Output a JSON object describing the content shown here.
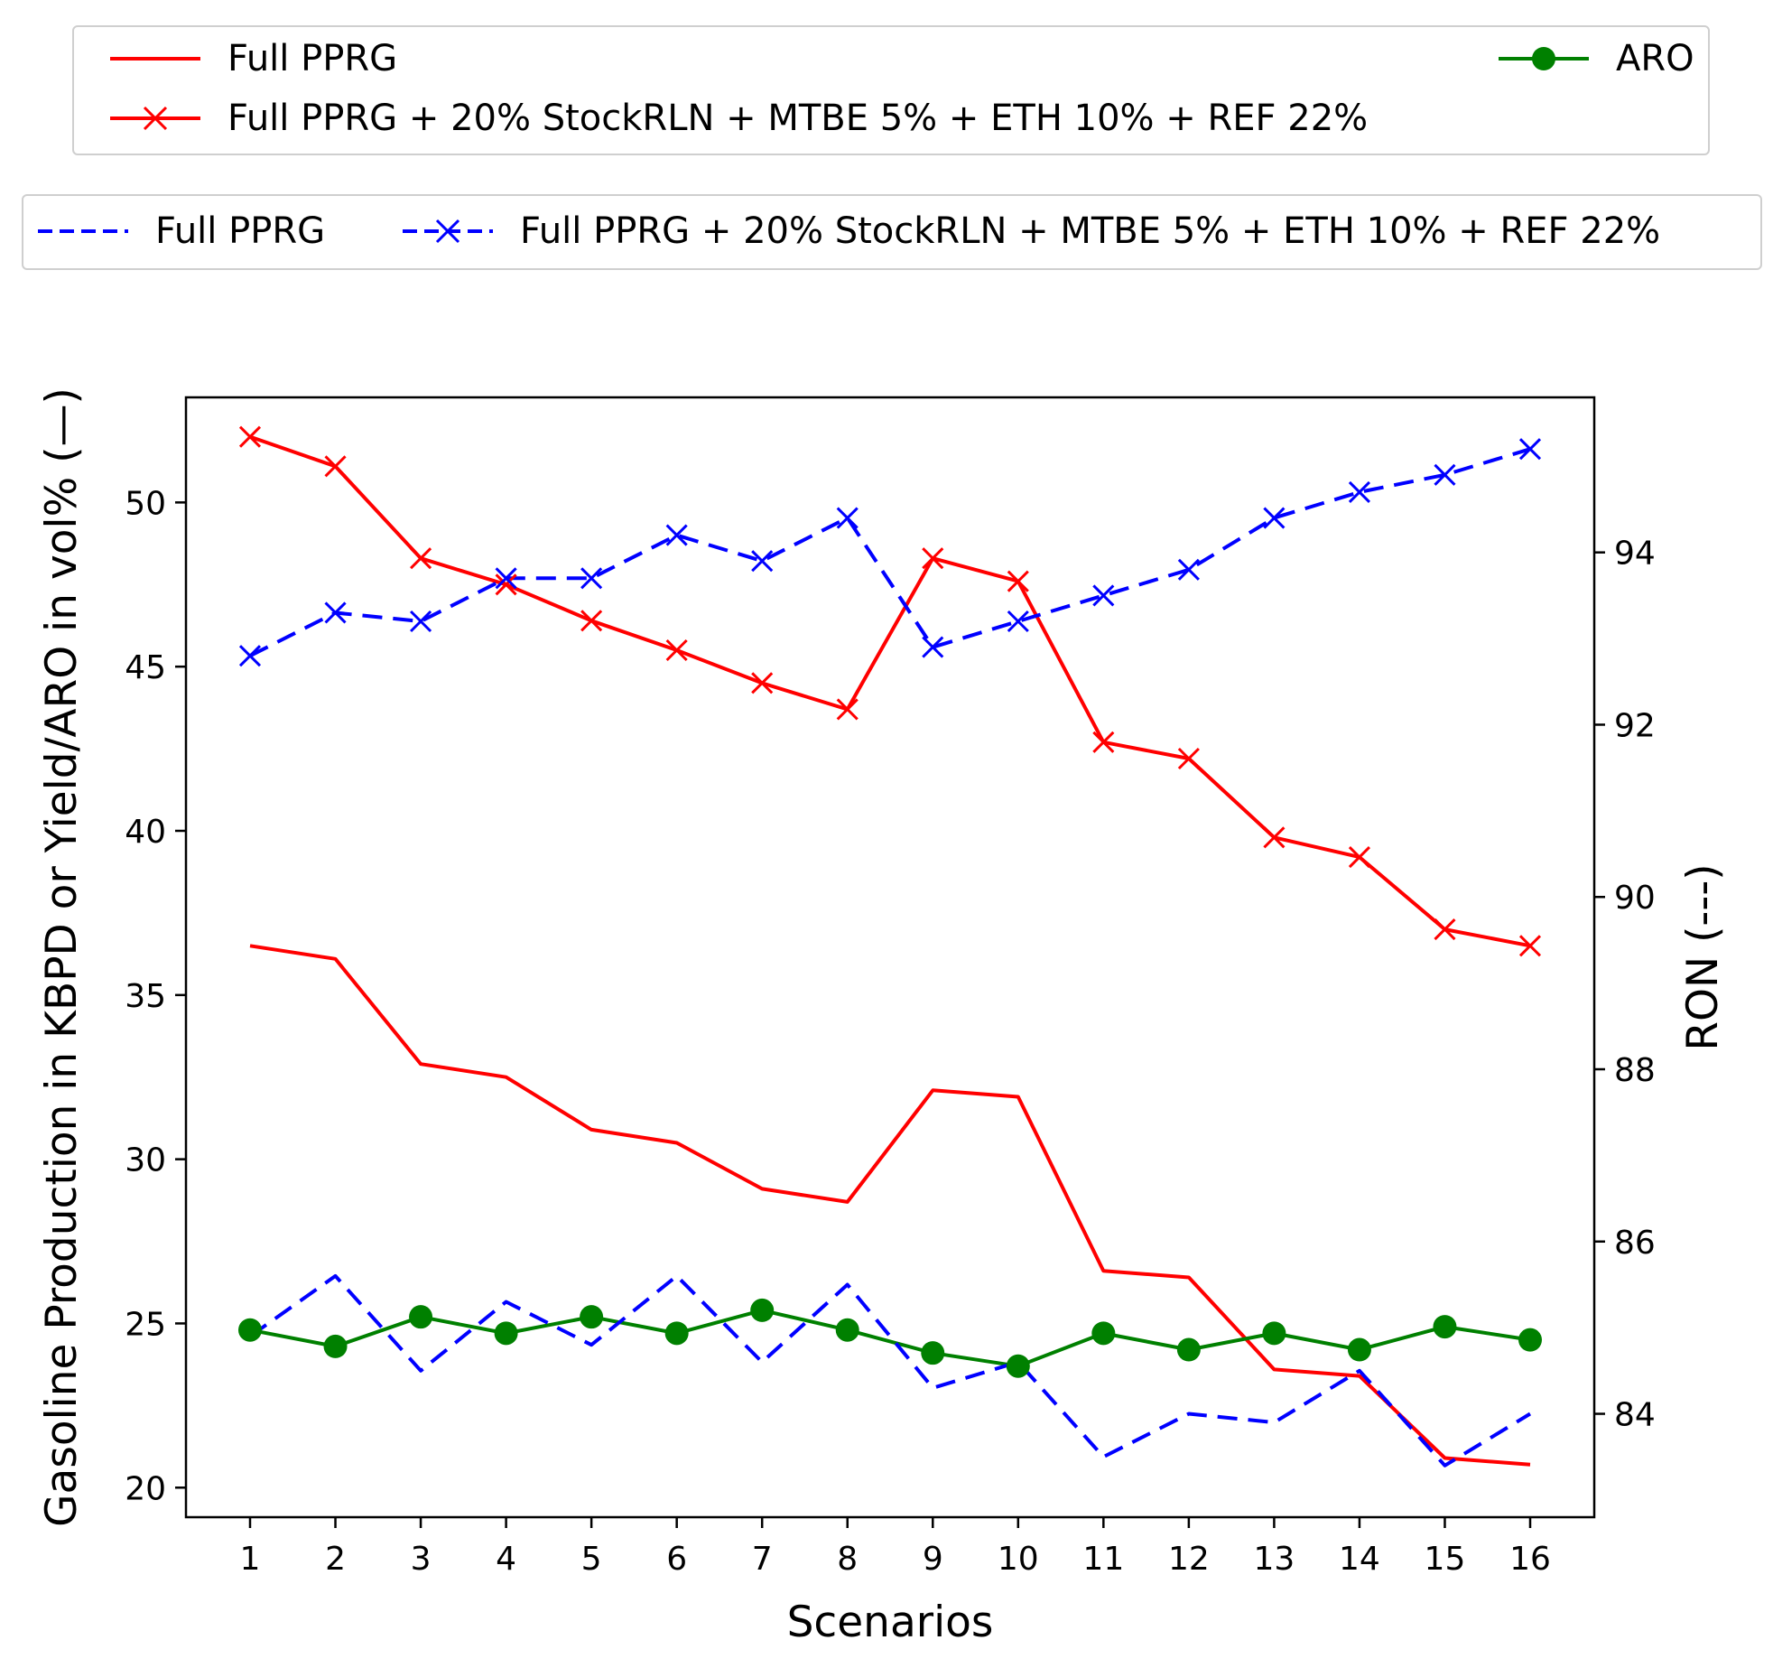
{
  "chart_data": {
    "type": "line",
    "xlabel": "Scenarios",
    "ylabel_left": "Gasoline Production in KBPD or Yield/ARO in vol% (—)",
    "ylabel_right": "RON (---)",
    "categories": [
      1,
      2,
      3,
      4,
      5,
      6,
      7,
      8,
      9,
      10,
      11,
      12,
      13,
      14,
      15,
      16
    ],
    "y_left": {
      "range": [
        19.1,
        53.2
      ],
      "ticks": [
        20,
        25,
        30,
        35,
        40,
        45,
        50
      ]
    },
    "y_right": {
      "range": [
        82.8,
        95.8
      ],
      "ticks": [
        84,
        86,
        88,
        90,
        92,
        94
      ]
    },
    "series": [
      {
        "name": "Full PPRG",
        "axis": "left",
        "color": "#ff0000",
        "style": "solid",
        "marker": "none",
        "values": [
          36.5,
          36.1,
          32.9,
          32.5,
          30.9,
          30.5,
          29.1,
          28.7,
          32.1,
          31.9,
          26.6,
          26.4,
          23.6,
          23.4,
          20.9,
          20.7
        ]
      },
      {
        "name": "Full PPRG + 20% StockRLN + MTBE 5% + ETH 10% + REF 22%",
        "axis": "left",
        "color": "#ff0000",
        "style": "solid",
        "marker": "x",
        "values": [
          52.0,
          51.1,
          48.3,
          47.5,
          46.4,
          45.5,
          44.5,
          43.7,
          48.3,
          47.6,
          42.7,
          42.2,
          39.8,
          39.2,
          37.0,
          36.5
        ]
      },
      {
        "name": "ARO",
        "axis": "left",
        "color": "#008000",
        "style": "solid",
        "marker": "o",
        "values": [
          24.8,
          24.3,
          25.2,
          24.7,
          25.2,
          24.7,
          25.4,
          24.8,
          24.1,
          23.7,
          24.7,
          24.2,
          24.7,
          24.2,
          24.9,
          24.5
        ]
      },
      {
        "name": "Full PPRG",
        "axis": "right",
        "color": "#0000ff",
        "style": "dashed",
        "marker": "none",
        "values": [
          84.9,
          85.6,
          84.5,
          85.3,
          84.8,
          85.6,
          84.6,
          85.5,
          84.3,
          84.6,
          83.5,
          84.0,
          83.9,
          84.5,
          83.4,
          84.0
        ]
      },
      {
        "name": "Full PPRG + 20% StockRLN + MTBE 5% + ETH 10% + REF 22%",
        "axis": "right",
        "color": "#0000ff",
        "style": "dashed",
        "marker": "x",
        "values": [
          92.8,
          93.3,
          93.2,
          93.7,
          93.7,
          94.2,
          93.9,
          94.4,
          92.9,
          93.2,
          93.5,
          93.8,
          94.4,
          94.7,
          94.9,
          95.2
        ]
      }
    ],
    "legends": [
      {
        "placement": "top",
        "entries": [
          "Full PPRG",
          "Full PPRG + 20% StockRLN + MTBE 5% + ETH 10% + REF 22%",
          "ARO"
        ]
      },
      {
        "placement": "top",
        "entries": [
          "Full PPRG",
          "Full PPRG + 20% StockRLN + MTBE 5% + ETH 10% + REF 22%"
        ]
      }
    ]
  }
}
